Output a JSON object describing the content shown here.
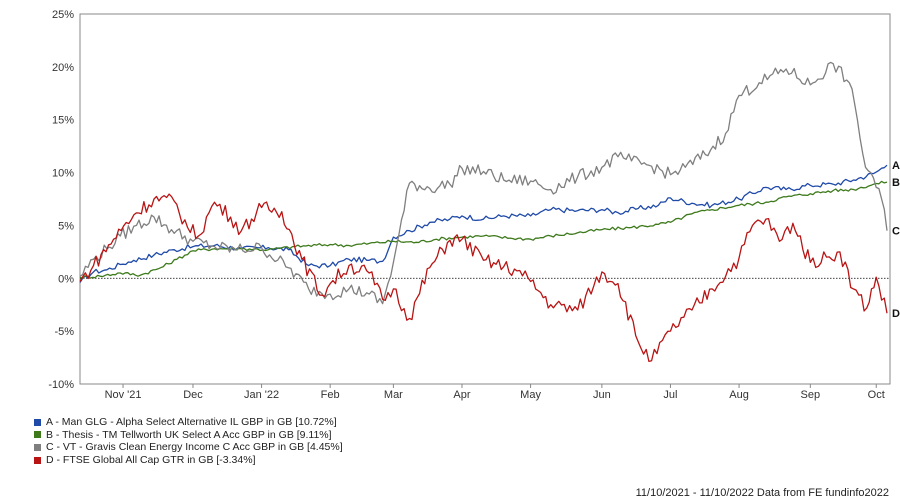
{
  "chart_data": {
    "type": "line",
    "ylim": [
      -10,
      25
    ],
    "y_ticks": [
      -10,
      -5,
      0,
      5,
      10,
      15,
      20,
      25
    ],
    "y_tick_labels": [
      "-10%",
      "-5%",
      "0%",
      "5%",
      "10%",
      "15%",
      "20%",
      "25%"
    ],
    "x_range_days": [
      0,
      365
    ],
    "x_ticks": [
      {
        "day": 32,
        "label": "Nov '21"
      },
      {
        "day": 84,
        "label": "Dec"
      },
      {
        "day": 135,
        "label": "Jan '22"
      },
      {
        "day": 186,
        "label": "Feb"
      },
      {
        "day": 233,
        "label": "Mar"
      },
      {
        "day": 284,
        "label": "Apr"
      },
      {
        "day": 335,
        "label": "May"
      },
      {
        "day": 388,
        "label": "Jun"
      },
      {
        "day": 439,
        "label": "Jul"
      },
      {
        "day": 490,
        "label": "Aug"
      },
      {
        "day": 543,
        "label": "Sep"
      },
      {
        "day": 592,
        "label": "Oct"
      }
    ],
    "grid": false,
    "legend_position": "bottom-left",
    "series": [
      {
        "key": "A",
        "name": "A - Man GLG - Alpha Select Alternative IL GBP in GB [10.72%]",
        "color": "#1f4aa8",
        "end_label": "A",
        "points": [
          [
            0,
            -0.4
          ],
          [
            10,
            0.6
          ],
          [
            20,
            0.8
          ],
          [
            30,
            1.3
          ],
          [
            40,
            1.7
          ],
          [
            55,
            2.2
          ],
          [
            70,
            2.7
          ],
          [
            84,
            3.0
          ],
          [
            100,
            3.1
          ],
          [
            120,
            2.8
          ],
          [
            140,
            2.9
          ],
          [
            155,
            2.7
          ],
          [
            170,
            1.2
          ],
          [
            186,
            1.2
          ],
          [
            200,
            1.8
          ],
          [
            215,
            1.7
          ],
          [
            225,
            1.6
          ],
          [
            233,
            3.9
          ],
          [
            245,
            4.5
          ],
          [
            260,
            5.3
          ],
          [
            275,
            5.6
          ],
          [
            284,
            5.9
          ],
          [
            300,
            5.6
          ],
          [
            315,
            5.9
          ],
          [
            335,
            5.9
          ],
          [
            350,
            6.5
          ],
          [
            370,
            6.4
          ],
          [
            388,
            6.5
          ],
          [
            400,
            6.2
          ],
          [
            415,
            6.6
          ],
          [
            430,
            6.9
          ],
          [
            439,
            7.6
          ],
          [
            455,
            7.1
          ],
          [
            470,
            6.9
          ],
          [
            490,
            7.5
          ],
          [
            510,
            8.6
          ],
          [
            525,
            8.4
          ],
          [
            543,
            8.8
          ],
          [
            560,
            8.9
          ],
          [
            575,
            9.3
          ],
          [
            590,
            9.9
          ],
          [
            600,
            10.7
          ]
        ]
      },
      {
        "key": "B",
        "name": "B - Thesis - TM Tellworth UK Select A Acc GBP in GB [9.11%]",
        "color": "#3e7a1c",
        "end_label": "B",
        "points": [
          [
            0,
            0.1
          ],
          [
            15,
            0.2
          ],
          [
            30,
            0.5
          ],
          [
            45,
            0.3
          ],
          [
            60,
            1.0
          ],
          [
            72,
            1.8
          ],
          [
            84,
            2.6
          ],
          [
            100,
            2.8
          ],
          [
            120,
            2.8
          ],
          [
            140,
            2.7
          ],
          [
            160,
            3.0
          ],
          [
            186,
            3.2
          ],
          [
            200,
            3.1
          ],
          [
            215,
            3.3
          ],
          [
            233,
            3.5
          ],
          [
            250,
            3.4
          ],
          [
            265,
            3.7
          ],
          [
            284,
            3.9
          ],
          [
            300,
            4.0
          ],
          [
            320,
            3.8
          ],
          [
            335,
            3.7
          ],
          [
            350,
            4.0
          ],
          [
            370,
            4.3
          ],
          [
            388,
            4.6
          ],
          [
            410,
            4.8
          ],
          [
            430,
            5.1
          ],
          [
            439,
            5.3
          ],
          [
            455,
            6.1
          ],
          [
            470,
            6.5
          ],
          [
            490,
            6.9
          ],
          [
            510,
            7.2
          ],
          [
            525,
            7.7
          ],
          [
            543,
            8.0
          ],
          [
            560,
            8.3
          ],
          [
            575,
            8.4
          ],
          [
            590,
            8.9
          ],
          [
            600,
            9.1
          ]
        ]
      },
      {
        "key": "C",
        "name": "C - VT - Gravis Clean Energy Income C Acc GBP in GB [4.45%]",
        "color": "#7f7f7f",
        "end_label": "C",
        "points": [
          [
            0,
            0.2
          ],
          [
            10,
            1.8
          ],
          [
            20,
            2.8
          ],
          [
            30,
            4.0
          ],
          [
            42,
            5.0
          ],
          [
            55,
            5.8
          ],
          [
            68,
            4.6
          ],
          [
            84,
            3.5
          ],
          [
            100,
            3.0
          ],
          [
            115,
            2.7
          ],
          [
            135,
            2.9
          ],
          [
            155,
            1.0
          ],
          [
            170,
            -1.0
          ],
          [
            186,
            -1.5
          ],
          [
            200,
            -1.0
          ],
          [
            215,
            -1.5
          ],
          [
            225,
            -2.4
          ],
          [
            233,
            1.5
          ],
          [
            245,
            9.0
          ],
          [
            260,
            8.5
          ],
          [
            275,
            8.9
          ],
          [
            284,
            10.4
          ],
          [
            300,
            10.1
          ],
          [
            315,
            9.3
          ],
          [
            335,
            9.2
          ],
          [
            350,
            8.4
          ],
          [
            370,
            9.6
          ],
          [
            388,
            10.5
          ],
          [
            400,
            11.5
          ],
          [
            410,
            11.1
          ],
          [
            425,
            10.6
          ],
          [
            439,
            9.8
          ],
          [
            450,
            10.5
          ],
          [
            465,
            11.7
          ],
          [
            480,
            13.7
          ],
          [
            490,
            17.3
          ],
          [
            505,
            18.5
          ],
          [
            525,
            19.8
          ],
          [
            543,
            18.3
          ],
          [
            560,
            20.3
          ],
          [
            572,
            18.5
          ],
          [
            578,
            15.0
          ],
          [
            584,
            10.5
          ],
          [
            590,
            9.5
          ],
          [
            596,
            7.5
          ],
          [
            600,
            4.5
          ]
        ]
      },
      {
        "key": "D",
        "name": "D - FTSE Global All Cap GTR in GB [-3.34%]",
        "color": "#b81414",
        "end_label": "D",
        "points": [
          [
            0,
            -0.3
          ],
          [
            10,
            1.2
          ],
          [
            25,
            3.7
          ],
          [
            40,
            6.0
          ],
          [
            55,
            7.5
          ],
          [
            70,
            7.3
          ],
          [
            80,
            4.8
          ],
          [
            88,
            4.0
          ],
          [
            100,
            7.2
          ],
          [
            112,
            5.8
          ],
          [
            120,
            4.5
          ],
          [
            135,
            6.7
          ],
          [
            150,
            6.3
          ],
          [
            165,
            1.8
          ],
          [
            180,
            -1.6
          ],
          [
            186,
            -0.5
          ],
          [
            200,
            1.2
          ],
          [
            215,
            0.5
          ],
          [
            225,
            -2.0
          ],
          [
            233,
            -1.0
          ],
          [
            245,
            -3.8
          ],
          [
            260,
            1.0
          ],
          [
            275,
            3.6
          ],
          [
            284,
            3.7
          ],
          [
            300,
            1.7
          ],
          [
            315,
            1.1
          ],
          [
            325,
            0.7
          ],
          [
            335,
            -0.3
          ],
          [
            350,
            -2.5
          ],
          [
            370,
            -3.0
          ],
          [
            388,
            0.6
          ],
          [
            400,
            -0.5
          ],
          [
            415,
            -6.0
          ],
          [
            425,
            -7.8
          ],
          [
            439,
            -5.0
          ],
          [
            455,
            -3.0
          ],
          [
            470,
            -1.0
          ],
          [
            490,
            1.9
          ],
          [
            500,
            5.0
          ],
          [
            510,
            5.6
          ],
          [
            520,
            3.5
          ],
          [
            530,
            5.2
          ],
          [
            543,
            1.5
          ],
          [
            555,
            2.0
          ],
          [
            565,
            2.5
          ],
          [
            575,
            -1.0
          ],
          [
            585,
            -2.8
          ],
          [
            592,
            0.1
          ],
          [
            600,
            -3.3
          ]
        ]
      }
    ]
  },
  "legend": {
    "items": [
      {
        "label": "A - Man GLG - Alpha Select Alternative IL GBP in GB [10.72%]",
        "color": "#1f4aa8"
      },
      {
        "label": "B - Thesis - TM Tellworth UK Select A Acc GBP in GB [9.11%]",
        "color": "#3e7a1c"
      },
      {
        "label": "C - VT - Gravis Clean Energy Income C Acc GBP in GB [4.45%]",
        "color": "#7f7f7f"
      },
      {
        "label": "D - FTSE Global All Cap GTR in GB [-3.34%]",
        "color": "#b81414"
      }
    ]
  },
  "footer": {
    "text": "11/10/2021 - 11/10/2022 Data from FE fundinfo2022"
  }
}
